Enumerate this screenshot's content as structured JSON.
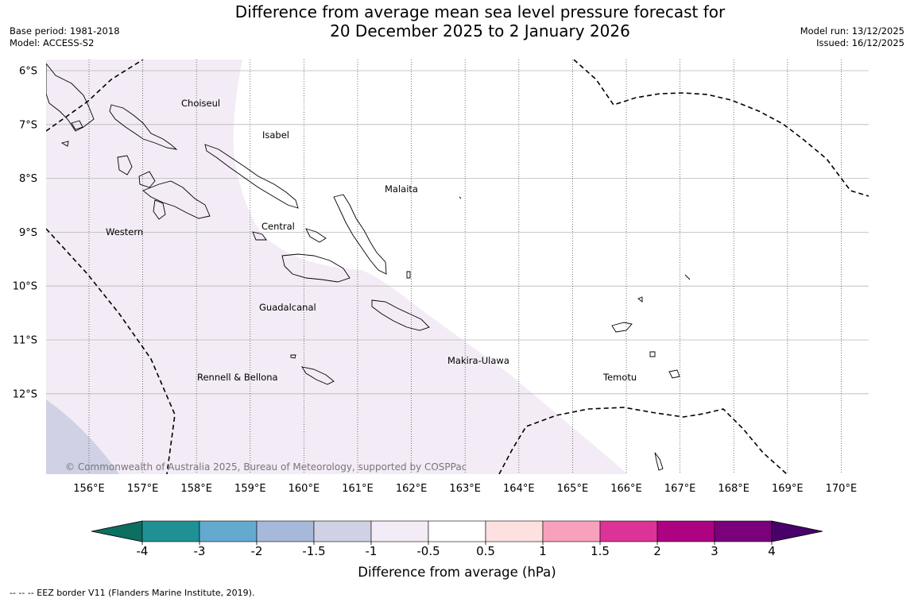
{
  "title_line1": "Difference from average mean sea level pressure forecast for",
  "title_line2": "20 December 2025 to 2 January 2026",
  "base_period": "Base period: 1981-2018",
  "model": "Model: ACCESS-S2",
  "model_run": "Model run: 13/12/2025",
  "issued": "Issued: 16/12/2025",
  "map": {
    "lat_labels": [
      "6°S",
      "7°S",
      "8°S",
      "9°S",
      "10°S",
      "11°S",
      "12°S"
    ],
    "lon_labels": [
      "156°E",
      "157°E",
      "158°E",
      "159°E",
      "160°E",
      "161°E",
      "162°E",
      "163°E",
      "164°E",
      "165°E",
      "166°E",
      "167°E",
      "168°E",
      "169°E",
      "170°E"
    ],
    "places": {
      "choiseul": "Choiseul",
      "isabel": "Isabel",
      "malaita": "Malaita",
      "western": "Western",
      "central": "Central",
      "guadalcanal": "Guadalcanal",
      "makira": "Makira-Ulawa",
      "rennell": "Rennell & Bellona",
      "temotu": "Temotu"
    },
    "copyright": "© Commonwealth of Australia 2025, Bureau of Meteorology, supported by COSPPac"
  },
  "colorbar": {
    "colors": [
      "#0d6e62",
      "#1f9195",
      "#64a9d0",
      "#a7b9da",
      "#d0d1e5",
      "#f3ebf5",
      "#ffffff",
      "#fde0e0",
      "#f7a1bd",
      "#dc3399",
      "#ad0282",
      "#7a017b",
      "#49006a"
    ],
    "ticks": [
      "-4",
      "-3",
      "-2",
      "-1.5",
      "-1",
      "-0.5",
      "0.5",
      "1",
      "1.5",
      "2",
      "3",
      "4"
    ],
    "label": "Difference from average (hPa)"
  },
  "footnote": "--  --  -- EEZ border V11 (Flanders Marine Institute, 2019)."
}
